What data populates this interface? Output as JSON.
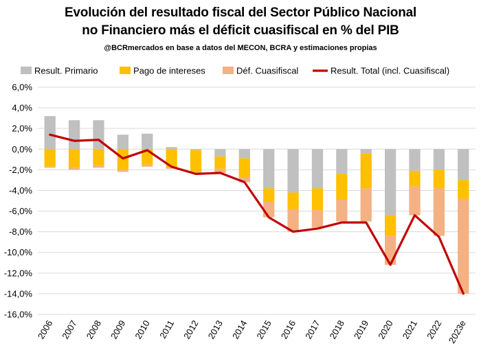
{
  "title_line1": "Evolución del resultado fiscal del Sector Público Nacional",
  "title_line2": "no Financiero más el déficit cuasifiscal en % del PIB",
  "subtitle": "@BCRmercados en base a datos del MECON, BCRA y estimaciones propias",
  "colors": {
    "primario": "#c0c0c0",
    "intereses": "#ffc000",
    "cuasifiscal": "#f4b183",
    "total": "#c00000",
    "grid": "#d9d9d9"
  },
  "chart_data": {
    "type": "bar",
    "stacked": true,
    "categories": [
      "2006",
      "2007",
      "2008",
      "2009",
      "2010",
      "2011",
      "2012",
      "2013",
      "2014",
      "2015",
      "2016",
      "2017",
      "2018",
      "2019",
      "2020",
      "2021",
      "2022",
      "2023e"
    ],
    "series": [
      {
        "name": "Result. Primario",
        "type": "bar",
        "values": [
          3.2,
          2.8,
          2.8,
          1.4,
          1.5,
          0.2,
          -0.1,
          -0.7,
          -0.9,
          -3.8,
          -4.2,
          -3.8,
          -2.4,
          -0.4,
          -6.4,
          -2.1,
          -2.0,
          -3.0
        ]
      },
      {
        "name": "Pago de intereses",
        "type": "bar",
        "values": [
          -1.7,
          -1.8,
          -1.6,
          -2.0,
          -1.5,
          -1.8,
          -2.1,
          -1.2,
          -1.8,
          -1.3,
          -1.6,
          -2.1,
          -2.5,
          -3.4,
          -2.0,
          -1.5,
          -1.8,
          -1.8
        ]
      },
      {
        "name": "Déf. Cuasifiscal",
        "type": "bar",
        "values": [
          -0.1,
          -0.2,
          -0.2,
          -0.2,
          -0.2,
          -0.1,
          -0.1,
          -0.4,
          -0.5,
          -1.5,
          -2.2,
          -1.7,
          -2.1,
          -3.2,
          -2.8,
          -2.8,
          -4.6,
          -9.2
        ]
      },
      {
        "name": "Result. Total (incl. Cuasifiscal)",
        "type": "line",
        "values": [
          1.4,
          0.8,
          0.9,
          -0.9,
          -0.1,
          -1.7,
          -2.4,
          -2.3,
          -3.2,
          -6.6,
          -8.0,
          -7.7,
          -7.1,
          -7.1,
          -11.2,
          -6.4,
          -8.5,
          -14.0
        ]
      }
    ],
    "ylim": [
      -16,
      6
    ],
    "yticks": [
      6,
      4,
      2,
      0,
      -2,
      -4,
      -6,
      -8,
      -10,
      -12,
      -14,
      -16
    ],
    "ytick_labels": [
      "6,0%",
      "4,0%",
      "2,0%",
      "0,0%",
      "-2,0%",
      "-4,0%",
      "-6,0%",
      "-8,0%",
      "-10,0%",
      "-12,0%",
      "-14,0%",
      "-16,0%"
    ],
    "grid": true,
    "legend": "top"
  }
}
